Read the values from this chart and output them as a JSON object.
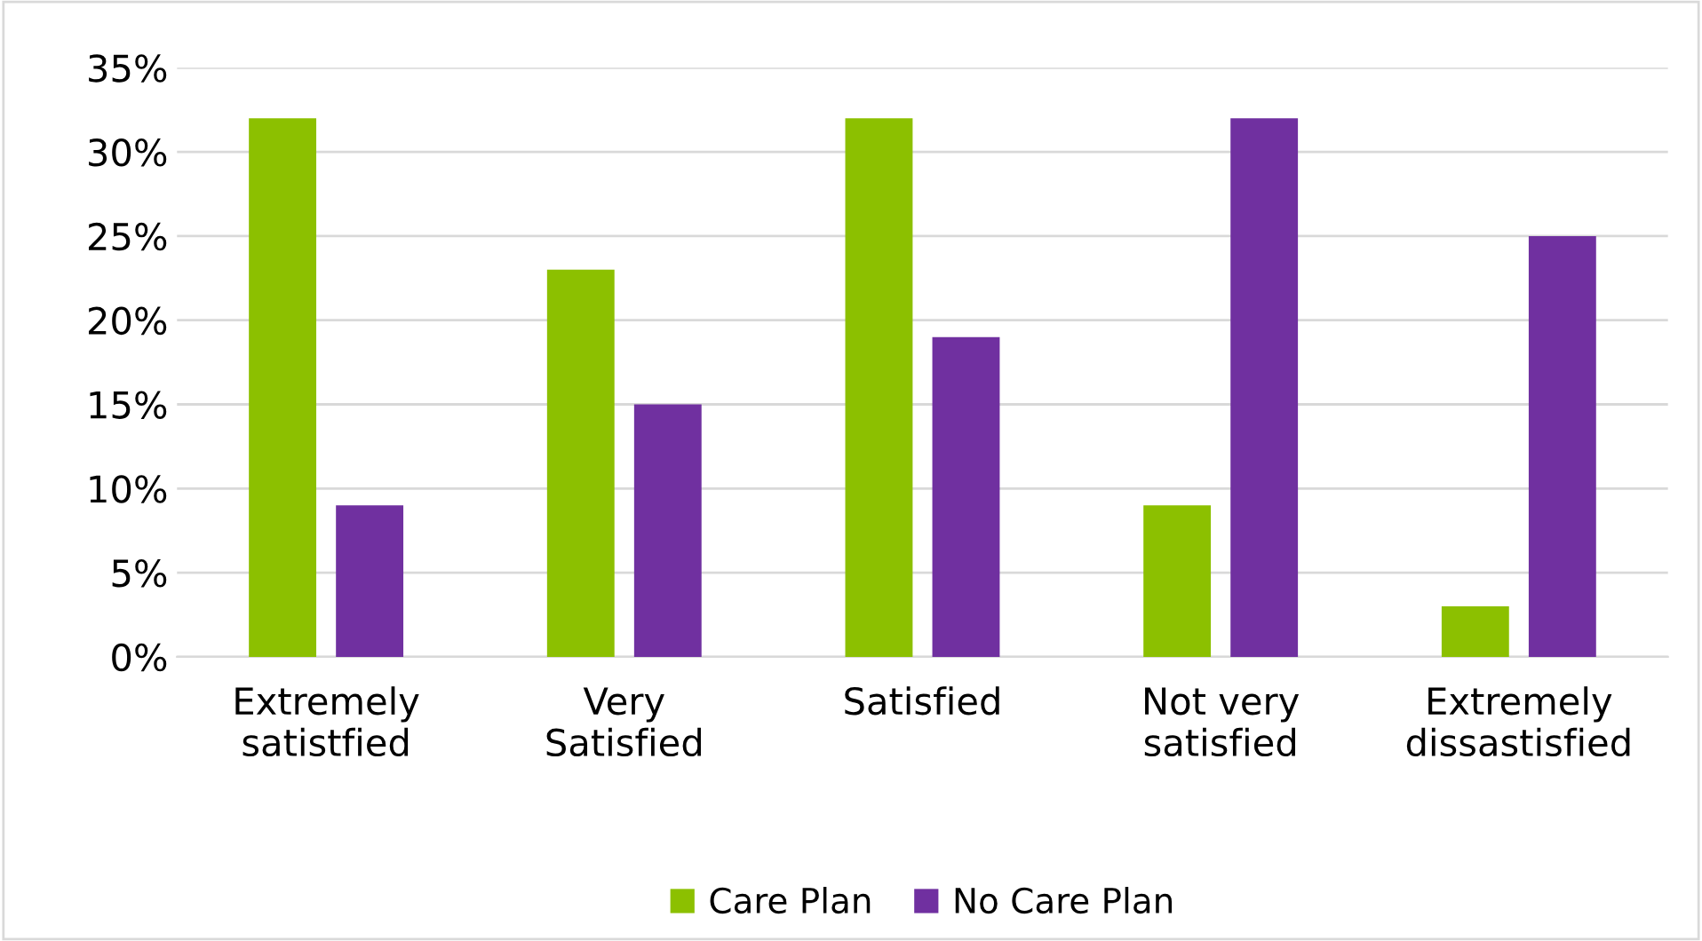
{
  "chart_data": {
    "type": "bar",
    "categories": [
      "Extremely\nsatistfied",
      "Very\nSatisfied",
      "Satisfied",
      "Not very\nsatisfied",
      "Extremely\ndissastisfied"
    ],
    "series": [
      {
        "name": "Care Plan",
        "color": "#8cc000",
        "values": [
          32,
          23,
          32,
          9,
          3
        ]
      },
      {
        "name": "No Care Plan",
        "color": "#7030a0",
        "values": [
          9,
          15,
          19,
          32,
          25
        ]
      }
    ],
    "ylim": [
      0,
      35
    ],
    "yticks": [
      {
        "value": 0,
        "label": "0%"
      },
      {
        "value": 5,
        "label": "5%"
      },
      {
        "value": 10,
        "label": "10%"
      },
      {
        "value": 15,
        "label": "15%"
      },
      {
        "value": 20,
        "label": "20%"
      },
      {
        "value": 25,
        "label": "25%"
      },
      {
        "value": 30,
        "label": "30%"
      },
      {
        "value": 35,
        "label": "35%"
      }
    ],
    "grid": "y",
    "legend": "bottom"
  }
}
